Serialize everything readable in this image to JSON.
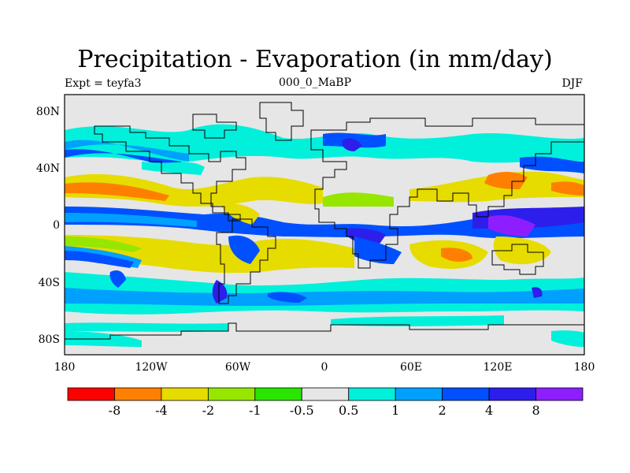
{
  "header": {
    "title": "Precipitation - Evaporation (in mm/day)",
    "left_label": "Expt = teyfa3",
    "center_label": "000_0_MaBP",
    "right_label": "DJF"
  },
  "map": {
    "x_ticks": [
      "180",
      "120W",
      "60W",
      "0",
      "60E",
      "120E",
      "180"
    ],
    "y_ticks": [
      "80N",
      "40N",
      "0",
      "40S",
      "80S"
    ],
    "background_color": "#e6e6e6"
  },
  "colorbar": {
    "labels": [
      "-8",
      "-4",
      "-2",
      "-1",
      "-0.5",
      "0.5",
      "1",
      "2",
      "4",
      "8"
    ],
    "colors": [
      "#ff0000",
      "#ff8000",
      "#e6dc00",
      "#96e600",
      "#28e600",
      "#e6e6e6",
      "#00f0dc",
      "#00a0ff",
      "#0050ff",
      "#2d1eeb",
      "#8c1eff"
    ]
  }
}
